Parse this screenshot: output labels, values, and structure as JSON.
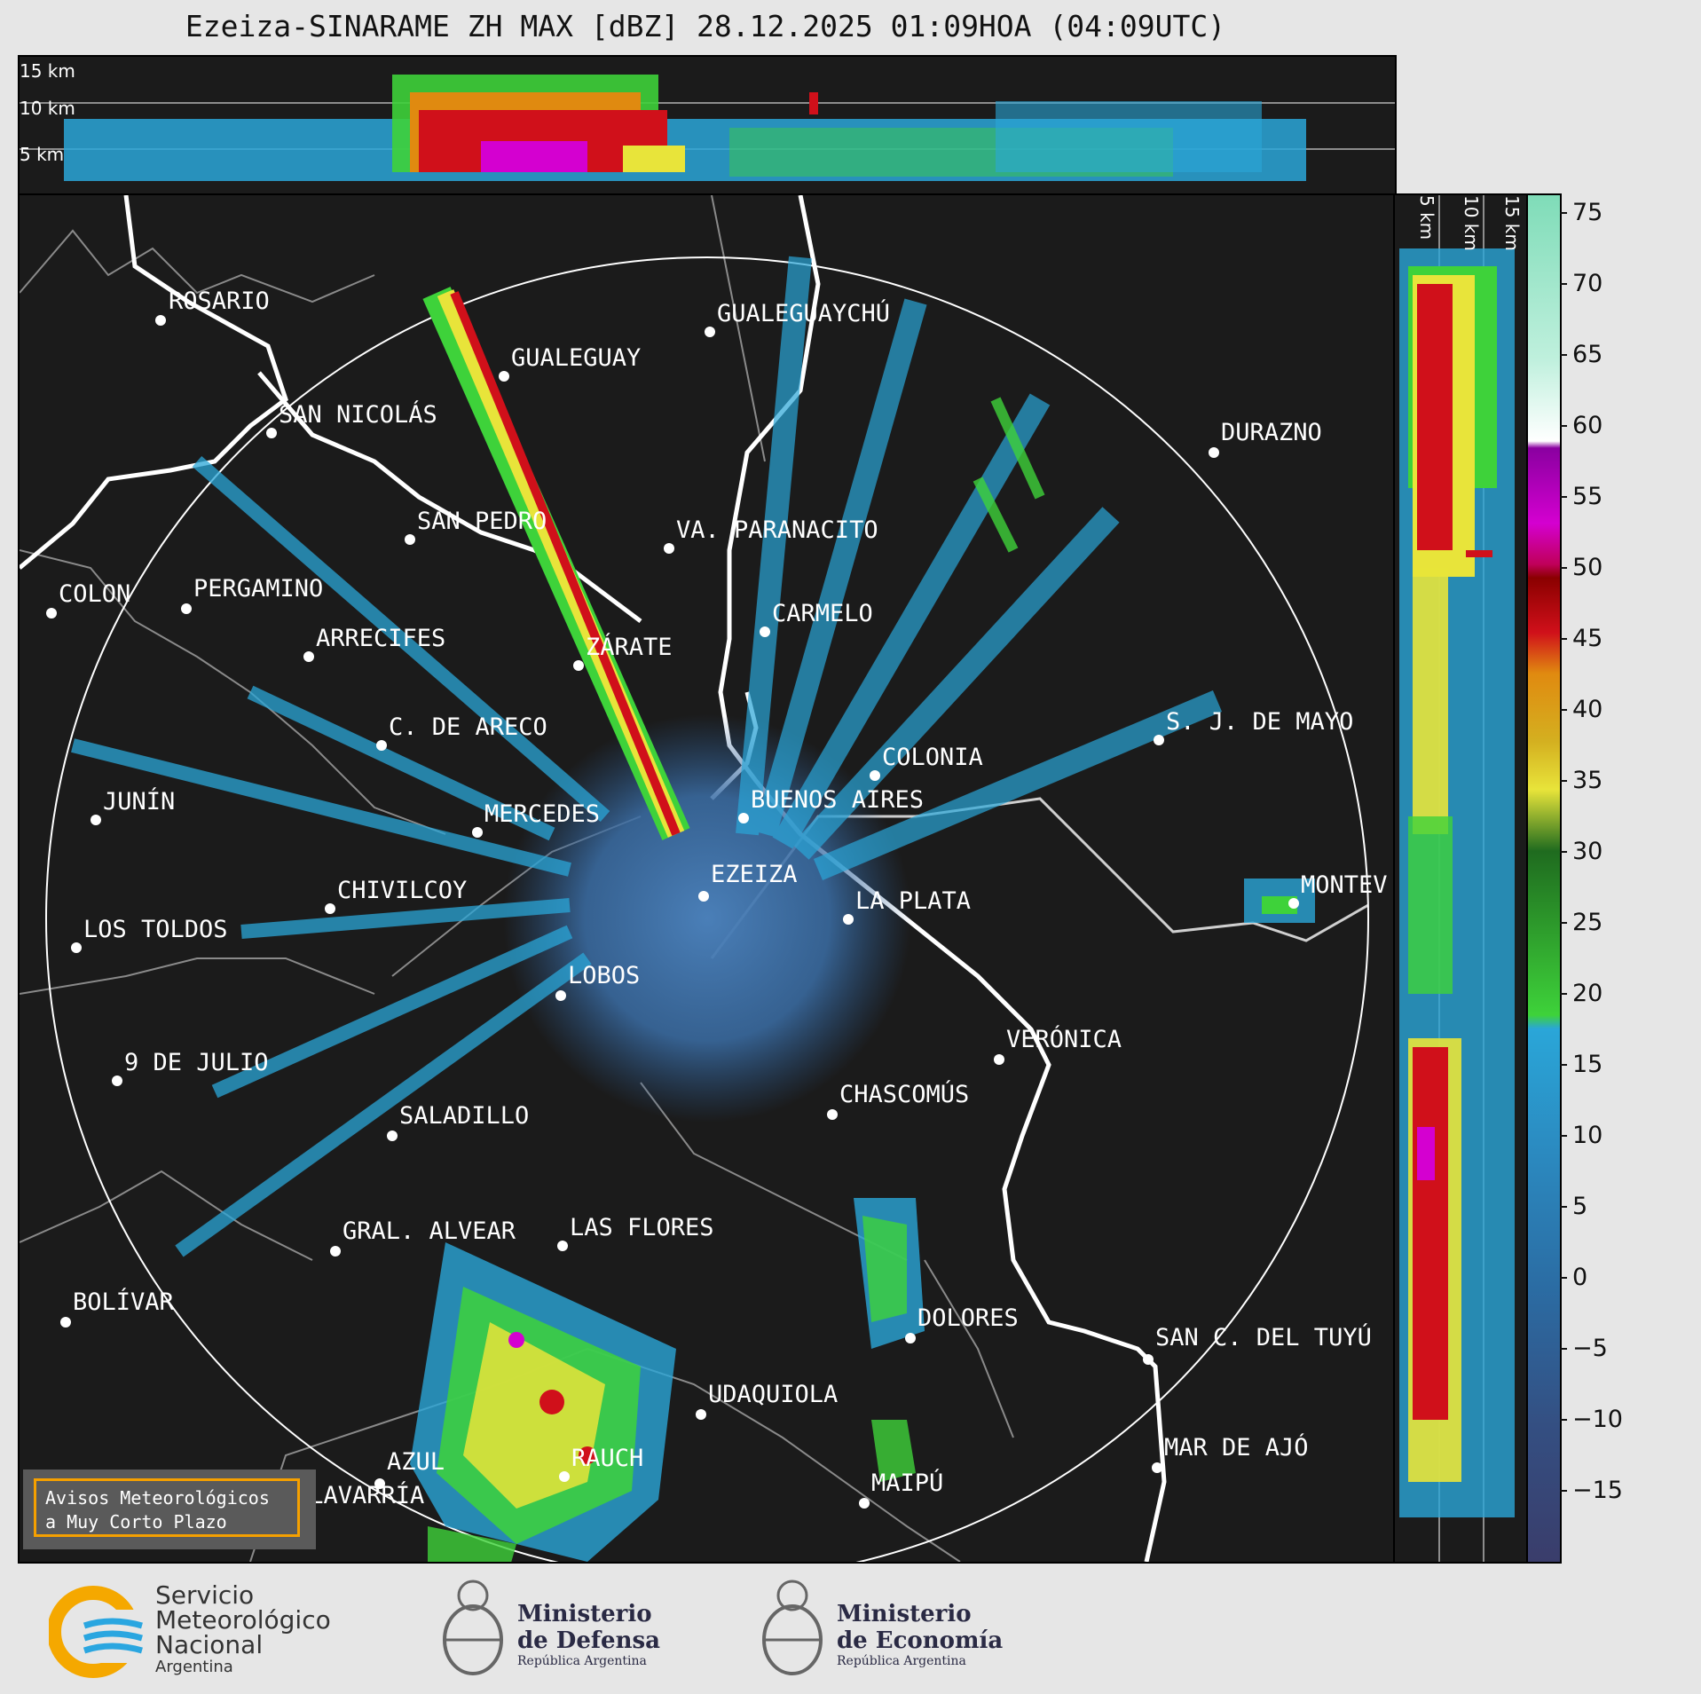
{
  "title": "Ezeiza-SINARAME ZH MAX [dBZ] 28.12.2025 01:09HOA (04:09UTC)",
  "height_labels": [
    "15 km",
    "10 km",
    "5 km"
  ],
  "colorbar": {
    "ticks": [
      "75",
      "70",
      "65",
      "60",
      "55",
      "50",
      "45",
      "40",
      "35",
      "30",
      "25",
      "20",
      "15",
      "10",
      "5",
      "0",
      "−5",
      "−10",
      "−15"
    ],
    "range": [
      -20,
      77
    ],
    "colors": {
      "low": "#3a3d6b",
      "blue": "#2b6ca3",
      "cyan": "#2aa6d8",
      "green_dark": "#1f6b1f",
      "green": "#3ed23a",
      "yellow": "#e8e43a",
      "orange": "#e08a10",
      "red": "#d0101a",
      "darkred": "#8a0000",
      "magenta": "#d400d0",
      "purple": "#8a00a0",
      "white": "#ffffff",
      "mint": "#7fdcb8"
    }
  },
  "cities": [
    {
      "name": "ROSARIO"
    },
    {
      "name": "GUALEGUAYCHÚ"
    },
    {
      "name": "GUALEGUAY"
    },
    {
      "name": "SAN NICOLÁS"
    },
    {
      "name": "DURAZNO"
    },
    {
      "name": "SAN PEDRO"
    },
    {
      "name": "VA. PARANACITO"
    },
    {
      "name": "COLON"
    },
    {
      "name": "PERGAMINO"
    },
    {
      "name": "CARMELO"
    },
    {
      "name": "ARRECIFES"
    },
    {
      "name": "ZÁRATE"
    },
    {
      "name": "S. J. DE MAYO"
    },
    {
      "name": "C. DE ARECO"
    },
    {
      "name": "COLONIA"
    },
    {
      "name": "JUNÍN"
    },
    {
      "name": "BUENOS AIRES"
    },
    {
      "name": "MERCEDES"
    },
    {
      "name": "MONTEV"
    },
    {
      "name": "EZEIZA"
    },
    {
      "name": "CHIVILCOY"
    },
    {
      "name": "LA PLATA"
    },
    {
      "name": "LOS TOLDOS"
    },
    {
      "name": "LOBOS"
    },
    {
      "name": "VERÓNICA"
    },
    {
      "name": "9 DE JULIO"
    },
    {
      "name": "SALADILLO"
    },
    {
      "name": "CHASCOMÚS"
    },
    {
      "name": "GRAL. ALVEAR"
    },
    {
      "name": "LAS FLORES"
    },
    {
      "name": "BOLÍVAR"
    },
    {
      "name": "DOLORES"
    },
    {
      "name": "SAN C. DEL TUYÚ"
    },
    {
      "name": "UDAQUIOLA"
    },
    {
      "name": "MAR DE AJÓ"
    },
    {
      "name": "AZUL"
    },
    {
      "name": "RAUCH"
    },
    {
      "name": "OLAVARRÍA"
    },
    {
      "name": "MAIPÚ"
    }
  ],
  "avisos": {
    "line1": "Avisos Meteorológicos",
    "line2": "a Muy Corto Plazo"
  },
  "logos": {
    "smn": {
      "line1": "Servicio",
      "line2": "Meteorológico",
      "line3": "Nacional",
      "line4": "Argentina"
    },
    "defensa": {
      "line1": "Ministerio",
      "line2": "de Defensa",
      "line3": "República Argentina"
    },
    "economia": {
      "line1": "Ministerio",
      "line2": "de Economía",
      "line3": "República Argentina"
    }
  }
}
